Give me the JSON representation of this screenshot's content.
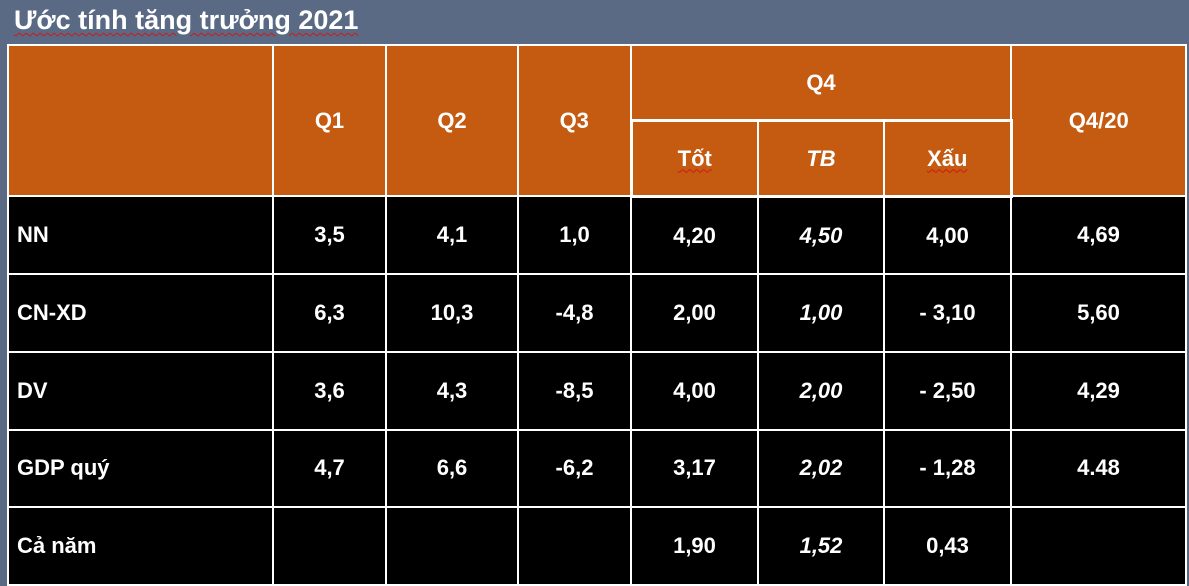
{
  "title": "Ước tính tăng trưởng 2021",
  "headers": {
    "q1": "Q1",
    "q2": "Q2",
    "q3": "Q3",
    "q4": "Q4",
    "q4_good": "Tốt",
    "q4_avg": "TB",
    "q4_bad": "Xấu",
    "q4_20": "Q4/20"
  },
  "rows": [
    {
      "label": "NN",
      "q1": "3,5",
      "q2": "4,1",
      "q3": "1,0",
      "good": "4,20",
      "avg": "4,50",
      "bad": "4,00",
      "q4_20": "4,69"
    },
    {
      "label": "CN-XD",
      "q1": "6,3",
      "q2": "10,3",
      "q3": "-4,8",
      "good": "2,00",
      "avg": "1,00",
      "bad": "- 3,10",
      "q4_20": "5,60"
    },
    {
      "label": "DV",
      "q1": "3,6",
      "q2": "4,3",
      "q3": "-8,5",
      "good": "4,00",
      "avg": "2,00",
      "bad": "- 2,50",
      "q4_20": "4,29"
    },
    {
      "label": "GDP quý",
      "q1": "4,7",
      "q2": "6,6",
      "q3": "-6,2",
      "good": "3,17",
      "avg": "2,02",
      "bad": "- 1,28",
      "q4_20": "4.48"
    },
    {
      "label": "Cả năm",
      "q1": "",
      "q2": "",
      "q3": "",
      "good": "1,90",
      "avg": "1,52",
      "bad": "0,43",
      "q4_20": ""
    }
  ],
  "colors": {
    "header_bg": "#c55a11",
    "body_bg": "#000000",
    "page_bg": "#5a6a84",
    "text": "#ffffff"
  }
}
